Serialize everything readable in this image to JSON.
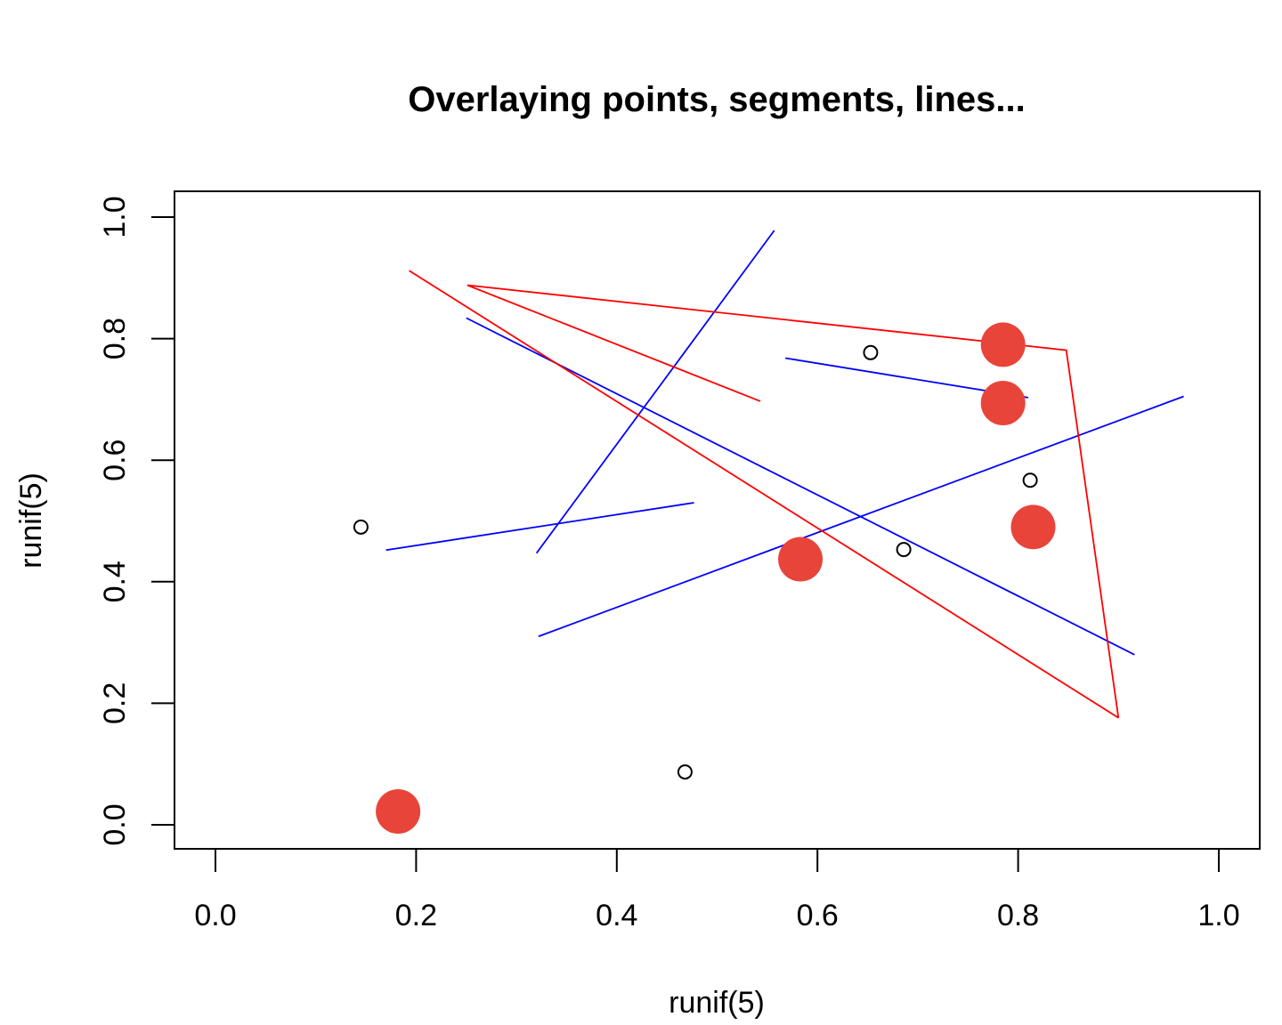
{
  "chart_data": {
    "type": "scatter",
    "title": "Overlaying points, segments, lines...",
    "xlabel": "runif(5)",
    "ylabel": "runif(5)",
    "xlim": [
      0,
      1
    ],
    "ylim": [
      0,
      1
    ],
    "xticks": [
      "0.0",
      "0.2",
      "0.4",
      "0.6",
      "0.8",
      "1.0"
    ],
    "yticks": [
      "0.0",
      "0.2",
      "0.4",
      "0.6",
      "0.8",
      "1.0"
    ],
    "xtick_values": [
      0,
      0.2,
      0.4,
      0.6,
      0.8,
      1.0
    ],
    "ytick_values": [
      0,
      0.2,
      0.4,
      0.6,
      0.8,
      1.0
    ],
    "grid": false,
    "open_points": {
      "color": "#000000",
      "x": [
        0.145,
        0.468,
        0.653,
        0.686,
        0.812
      ],
      "y": [
        0.49,
        0.087,
        0.777,
        0.453,
        0.567
      ]
    },
    "filled_points": {
      "color": "#e8443a",
      "x": [
        0.182,
        0.583,
        0.785,
        0.785,
        0.815
      ],
      "y": [
        0.022,
        0.437,
        0.79,
        0.694,
        0.49
      ]
    },
    "red_segment": {
      "color": "#ff0000",
      "x0": 0.193,
      "y0": 0.912,
      "x1": 0.9,
      "y1": 0.176
    },
    "red_polyline": {
      "color": "#ff0000",
      "x": [
        0.543,
        0.251,
        0.848,
        0.9
      ],
      "y": [
        0.697,
        0.888,
        0.781,
        0.176
      ]
    },
    "blue_segments": {
      "color": "#0000ff",
      "x0": [
        0.17,
        0.32,
        0.25,
        0.568,
        0.322
      ],
      "y0": [
        0.452,
        0.447,
        0.834,
        0.768,
        0.31
      ],
      "x1": [
        0.477,
        0.557,
        0.916,
        0.81,
        0.965
      ],
      "y1": [
        0.53,
        0.978,
        0.28,
        0.703,
        0.705
      ]
    }
  }
}
